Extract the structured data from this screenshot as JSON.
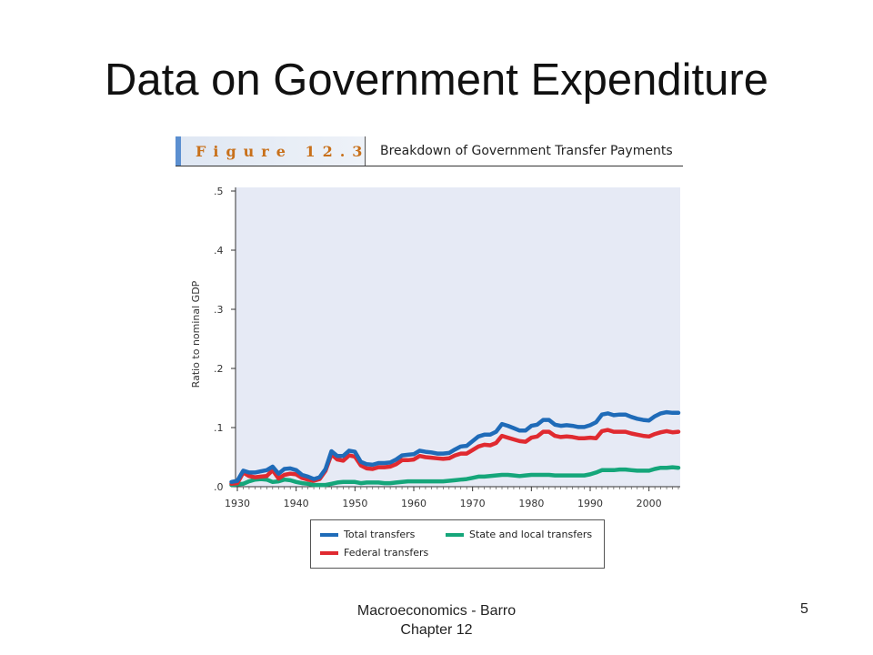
{
  "slide": {
    "title": "Data on Government Expenditure",
    "footer_line1": "Macroeconomics - Barro",
    "footer_line2": "Chapter 12",
    "page_number": "5"
  },
  "figure": {
    "label": "Figure 12.3",
    "title": "Breakdown of Government Transfer Payments"
  },
  "chart_data": {
    "type": "line",
    "title": "Breakdown of Government Transfer Payments",
    "xlabel": "",
    "ylabel": "Ratio to nominal GDP",
    "xlim": [
      1930,
      2005
    ],
    "ylim": [
      0,
      0.5
    ],
    "x_ticks": [
      1930,
      1940,
      1950,
      1960,
      1970,
      1980,
      1990,
      2000
    ],
    "y_ticks": [
      {
        "v": 0,
        "label": ".0"
      },
      {
        "v": 0.1,
        "label": ".1"
      },
      {
        "v": 0.2,
        "label": ".2"
      },
      {
        "v": 0.3,
        "label": ".3"
      },
      {
        "v": 0.4,
        "label": ".4"
      },
      {
        "v": 0.5,
        "label": ".5"
      }
    ],
    "grid": false,
    "background": "#e6eaf5",
    "legend_position": "bottom",
    "series": [
      {
        "name": "Total transfers",
        "color": "#1f6bb8",
        "points": [
          [
            1929,
            0.008
          ],
          [
            1930,
            0.01
          ],
          [
            1931,
            0.027
          ],
          [
            1932,
            0.024
          ],
          [
            1933,
            0.024
          ],
          [
            1934,
            0.026
          ],
          [
            1935,
            0.028
          ],
          [
            1936,
            0.034
          ],
          [
            1937,
            0.022
          ],
          [
            1938,
            0.03
          ],
          [
            1939,
            0.031
          ],
          [
            1940,
            0.028
          ],
          [
            1941,
            0.02
          ],
          [
            1942,
            0.017
          ],
          [
            1943,
            0.013
          ],
          [
            1944,
            0.016
          ],
          [
            1945,
            0.03
          ],
          [
            1946,
            0.06
          ],
          [
            1947,
            0.052
          ],
          [
            1948,
            0.052
          ],
          [
            1949,
            0.061
          ],
          [
            1950,
            0.059
          ],
          [
            1951,
            0.042
          ],
          [
            1952,
            0.038
          ],
          [
            1953,
            0.037
          ],
          [
            1954,
            0.04
          ],
          [
            1955,
            0.04
          ],
          [
            1956,
            0.041
          ],
          [
            1957,
            0.046
          ],
          [
            1958,
            0.053
          ],
          [
            1959,
            0.054
          ],
          [
            1960,
            0.055
          ],
          [
            1961,
            0.061
          ],
          [
            1962,
            0.059
          ],
          [
            1963,
            0.058
          ],
          [
            1964,
            0.056
          ],
          [
            1965,
            0.056
          ],
          [
            1966,
            0.057
          ],
          [
            1967,
            0.063
          ],
          [
            1968,
            0.068
          ],
          [
            1969,
            0.069
          ],
          [
            1970,
            0.077
          ],
          [
            1971,
            0.085
          ],
          [
            1972,
            0.088
          ],
          [
            1973,
            0.088
          ],
          [
            1974,
            0.093
          ],
          [
            1975,
            0.106
          ],
          [
            1976,
            0.103
          ],
          [
            1977,
            0.099
          ],
          [
            1978,
            0.095
          ],
          [
            1979,
            0.095
          ],
          [
            1980,
            0.103
          ],
          [
            1981,
            0.105
          ],
          [
            1982,
            0.113
          ],
          [
            1983,
            0.113
          ],
          [
            1984,
            0.105
          ],
          [
            1985,
            0.103
          ],
          [
            1986,
            0.104
          ],
          [
            1987,
            0.103
          ],
          [
            1988,
            0.101
          ],
          [
            1989,
            0.101
          ],
          [
            1990,
            0.104
          ],
          [
            1991,
            0.109
          ],
          [
            1992,
            0.122
          ],
          [
            1993,
            0.124
          ],
          [
            1994,
            0.121
          ],
          [
            1995,
            0.122
          ],
          [
            1996,
            0.122
          ],
          [
            1997,
            0.118
          ],
          [
            1998,
            0.115
          ],
          [
            1999,
            0.113
          ],
          [
            2000,
            0.112
          ],
          [
            2001,
            0.119
          ],
          [
            2002,
            0.124
          ],
          [
            2003,
            0.126
          ],
          [
            2004,
            0.125
          ],
          [
            2005,
            0.125
          ]
        ]
      },
      {
        "name": "Federal transfers",
        "color": "#e02a30",
        "points": [
          [
            1929,
            0.005
          ],
          [
            1930,
            0.006
          ],
          [
            1931,
            0.024
          ],
          [
            1932,
            0.018
          ],
          [
            1933,
            0.016
          ],
          [
            1934,
            0.017
          ],
          [
            1935,
            0.018
          ],
          [
            1936,
            0.028
          ],
          [
            1937,
            0.014
          ],
          [
            1938,
            0.02
          ],
          [
            1939,
            0.022
          ],
          [
            1940,
            0.021
          ],
          [
            1941,
            0.015
          ],
          [
            1942,
            0.012
          ],
          [
            1943,
            0.01
          ],
          [
            1944,
            0.013
          ],
          [
            1945,
            0.027
          ],
          [
            1946,
            0.055
          ],
          [
            1947,
            0.046
          ],
          [
            1948,
            0.044
          ],
          [
            1949,
            0.053
          ],
          [
            1950,
            0.051
          ],
          [
            1951,
            0.036
          ],
          [
            1952,
            0.031
          ],
          [
            1953,
            0.03
          ],
          [
            1954,
            0.033
          ],
          [
            1955,
            0.033
          ],
          [
            1956,
            0.034
          ],
          [
            1957,
            0.038
          ],
          [
            1958,
            0.045
          ],
          [
            1959,
            0.045
          ],
          [
            1960,
            0.046
          ],
          [
            1961,
            0.052
          ],
          [
            1962,
            0.05
          ],
          [
            1963,
            0.049
          ],
          [
            1964,
            0.048
          ],
          [
            1965,
            0.047
          ],
          [
            1966,
            0.048
          ],
          [
            1967,
            0.053
          ],
          [
            1968,
            0.056
          ],
          [
            1969,
            0.056
          ],
          [
            1970,
            0.062
          ],
          [
            1971,
            0.068
          ],
          [
            1972,
            0.071
          ],
          [
            1973,
            0.07
          ],
          [
            1974,
            0.074
          ],
          [
            1975,
            0.086
          ],
          [
            1976,
            0.083
          ],
          [
            1977,
            0.08
          ],
          [
            1978,
            0.077
          ],
          [
            1979,
            0.076
          ],
          [
            1980,
            0.083
          ],
          [
            1981,
            0.085
          ],
          [
            1982,
            0.093
          ],
          [
            1983,
            0.093
          ],
          [
            1984,
            0.086
          ],
          [
            1985,
            0.084
          ],
          [
            1986,
            0.085
          ],
          [
            1987,
            0.084
          ],
          [
            1988,
            0.082
          ],
          [
            1989,
            0.082
          ],
          [
            1990,
            0.083
          ],
          [
            1991,
            0.082
          ],
          [
            1992,
            0.094
          ],
          [
            1993,
            0.096
          ],
          [
            1994,
            0.093
          ],
          [
            1995,
            0.093
          ],
          [
            1996,
            0.093
          ],
          [
            1997,
            0.09
          ],
          [
            1998,
            0.088
          ],
          [
            1999,
            0.086
          ],
          [
            2000,
            0.085
          ],
          [
            2001,
            0.089
          ],
          [
            2002,
            0.092
          ],
          [
            2003,
            0.094
          ],
          [
            2004,
            0.092
          ],
          [
            2005,
            0.093
          ]
        ]
      },
      {
        "name": "State and local transfers",
        "color": "#15a67a",
        "points": [
          [
            1929,
            0.003
          ],
          [
            1930,
            0.004
          ],
          [
            1931,
            0.005
          ],
          [
            1932,
            0.009
          ],
          [
            1933,
            0.012
          ],
          [
            1934,
            0.013
          ],
          [
            1935,
            0.012
          ],
          [
            1936,
            0.008
          ],
          [
            1937,
            0.009
          ],
          [
            1938,
            0.012
          ],
          [
            1939,
            0.011
          ],
          [
            1940,
            0.008
          ],
          [
            1941,
            0.006
          ],
          [
            1942,
            0.005
          ],
          [
            1943,
            0.003
          ],
          [
            1944,
            0.003
          ],
          [
            1945,
            0.003
          ],
          [
            1946,
            0.005
          ],
          [
            1947,
            0.007
          ],
          [
            1948,
            0.008
          ],
          [
            1949,
            0.008
          ],
          [
            1950,
            0.008
          ],
          [
            1951,
            0.006
          ],
          [
            1952,
            0.007
          ],
          [
            1953,
            0.007
          ],
          [
            1954,
            0.007
          ],
          [
            1955,
            0.006
          ],
          [
            1956,
            0.006
          ],
          [
            1957,
            0.007
          ],
          [
            1958,
            0.008
          ],
          [
            1959,
            0.009
          ],
          [
            1960,
            0.009
          ],
          [
            1961,
            0.009
          ],
          [
            1962,
            0.009
          ],
          [
            1963,
            0.009
          ],
          [
            1964,
            0.009
          ],
          [
            1965,
            0.009
          ],
          [
            1966,
            0.01
          ],
          [
            1967,
            0.011
          ],
          [
            1968,
            0.012
          ],
          [
            1969,
            0.013
          ],
          [
            1970,
            0.015
          ],
          [
            1971,
            0.017
          ],
          [
            1972,
            0.017
          ],
          [
            1973,
            0.018
          ],
          [
            1974,
            0.019
          ],
          [
            1975,
            0.02
          ],
          [
            1976,
            0.02
          ],
          [
            1977,
            0.019
          ],
          [
            1978,
            0.018
          ],
          [
            1979,
            0.019
          ],
          [
            1980,
            0.02
          ],
          [
            1981,
            0.02
          ],
          [
            1982,
            0.02
          ],
          [
            1983,
            0.02
          ],
          [
            1984,
            0.019
          ],
          [
            1985,
            0.019
          ],
          [
            1986,
            0.019
          ],
          [
            1987,
            0.019
          ],
          [
            1988,
            0.019
          ],
          [
            1989,
            0.019
          ],
          [
            1990,
            0.021
          ],
          [
            1991,
            0.024
          ],
          [
            1992,
            0.028
          ],
          [
            1993,
            0.028
          ],
          [
            1994,
            0.028
          ],
          [
            1995,
            0.029
          ],
          [
            1996,
            0.029
          ],
          [
            1997,
            0.028
          ],
          [
            1998,
            0.027
          ],
          [
            1999,
            0.027
          ],
          [
            2000,
            0.027
          ],
          [
            2001,
            0.03
          ],
          [
            2002,
            0.032
          ],
          [
            2003,
            0.032
          ],
          [
            2004,
            0.033
          ],
          [
            2005,
            0.032
          ]
        ]
      }
    ]
  },
  "legend": {
    "total": "Total transfers",
    "state_local": "State and local transfers",
    "federal": "Federal transfers",
    "colors": {
      "total": "#1f6bb8",
      "federal": "#e02a30",
      "state_local": "#15a67a"
    }
  }
}
